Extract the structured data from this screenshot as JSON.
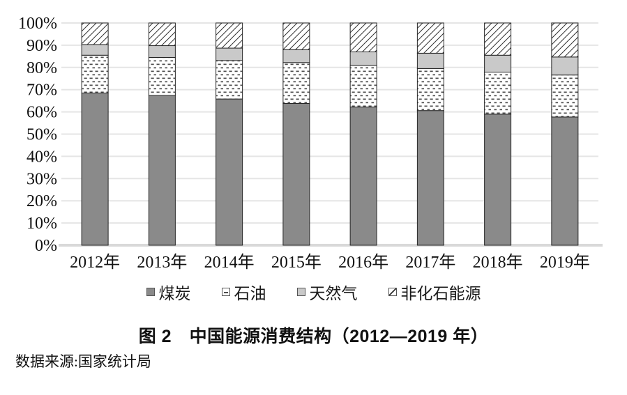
{
  "figure": {
    "caption": "图 2　中国能源消费结构（2012—2019 年）",
    "source": "数据来源:国家统计局"
  },
  "colors": {
    "background": "#ffffff",
    "coal_fill": "#8a8a8a",
    "gas_fill": "#c9c9c9",
    "pattern_ink": "#4d4d4d",
    "hatch_ink": "#333333",
    "bar_border": "#262626",
    "gridline": "#e5e5e5",
    "axis_line": "#d9d9d9",
    "text": "#111111"
  },
  "y_axis": {
    "tick_labels": [
      "0%",
      "10%",
      "20%",
      "30%",
      "40%",
      "50%",
      "60%",
      "70%",
      "80%",
      "90%",
      "100%"
    ]
  },
  "legend": [
    {
      "key": "coal",
      "label": "煤炭",
      "swatch": "solid-dark-gray"
    },
    {
      "key": "oil",
      "label": "石油",
      "swatch": "dotted-dashes"
    },
    {
      "key": "natural-gas",
      "label": "天然气",
      "swatch": "solid-light-gray"
    },
    {
      "key": "non-fossil",
      "label": "非化石能源",
      "swatch": "diagonal-hatch"
    }
  ],
  "chart_data": {
    "type": "bar",
    "variant": "stacked-percent",
    "title": "中国能源消费结构（2012—2019 年）",
    "categories": [
      "2012年",
      "2013年",
      "2014年",
      "2015年",
      "2016年",
      "2017年",
      "2018年",
      "2019年"
    ],
    "series": [
      {
        "key": "coal",
        "name": "煤炭",
        "style": "solid-dark-gray",
        "values": [
          68.5,
          67.4,
          65.8,
          63.8,
          62.2,
          60.6,
          59.0,
          57.7
        ]
      },
      {
        "key": "oil",
        "name": "石油",
        "style": "dotted-dashes",
        "values": [
          17.0,
          17.1,
          17.3,
          18.4,
          18.7,
          18.9,
          18.9,
          18.9
        ]
      },
      {
        "key": "natural-gas",
        "name": "天然气",
        "style": "solid-light-gray",
        "values": [
          4.8,
          5.3,
          5.6,
          5.8,
          6.1,
          6.9,
          7.6,
          8.1
        ]
      },
      {
        "key": "non-fossil",
        "name": "非化石能源",
        "style": "diagonal-hatch",
        "values": [
          9.7,
          10.2,
          11.3,
          12.0,
          13.0,
          13.6,
          14.5,
          15.3
        ]
      }
    ],
    "ylim": [
      0,
      100
    ],
    "ytick_step": 10,
    "grid": true,
    "legend_position": "bottom",
    "xlabel": "",
    "ylabel": ""
  }
}
